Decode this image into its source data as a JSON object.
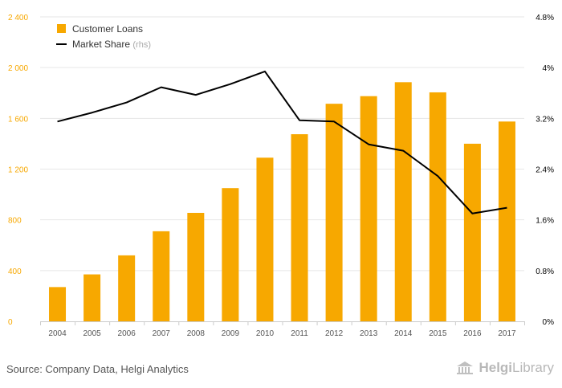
{
  "colors": {
    "bar": "#f7a800",
    "line": "#000000",
    "grid": "#e6e6e6",
    "left_axis_text": "#f7a800",
    "right_axis_text": "#000000",
    "x_axis_text": "#555555"
  },
  "chart_data": {
    "type": "bar+line",
    "categories": [
      "2004",
      "2005",
      "2006",
      "2007",
      "2008",
      "2009",
      "2010",
      "2011",
      "2012",
      "2013",
      "2014",
      "2015",
      "2016",
      "2017"
    ],
    "series": [
      {
        "name": "Customer Loans",
        "type": "bar",
        "axis": "left",
        "values": [
          270,
          370,
          520,
          710,
          855,
          1050,
          1290,
          1475,
          1715,
          1775,
          1885,
          1805,
          1400,
          1575
        ]
      },
      {
        "name": "Market Share",
        "name_suffix": "(rhs)",
        "type": "line",
        "axis": "right",
        "values": [
          3.15,
          3.29,
          3.45,
          3.69,
          3.57,
          3.74,
          3.94,
          3.17,
          3.15,
          2.79,
          2.69,
          2.29,
          1.7,
          1.79
        ]
      }
    ],
    "y_left": {
      "min": 0,
      "max": 2400,
      "ticks": [
        0,
        400,
        800,
        1200,
        1600,
        2000,
        2400
      ],
      "tick_labels": [
        "0",
        "400",
        "800",
        "1 200",
        "1 600",
        "2 000",
        "2 400"
      ]
    },
    "y_right": {
      "min": 0,
      "max": 4.8,
      "ticks": [
        0,
        0.8,
        1.6,
        2.4,
        3.2,
        4,
        4.8
      ],
      "tick_labels": [
        "0%",
        "0.8%",
        "1.6%",
        "2.4%",
        "3.2%",
        "4%",
        "4.8%"
      ]
    },
    "grid": true,
    "legend_position": "top-left"
  },
  "footer": {
    "source": "Source: Company Data, Helgi Analytics",
    "logo_brand": "Helgi",
    "logo_suffix": "Library"
  }
}
